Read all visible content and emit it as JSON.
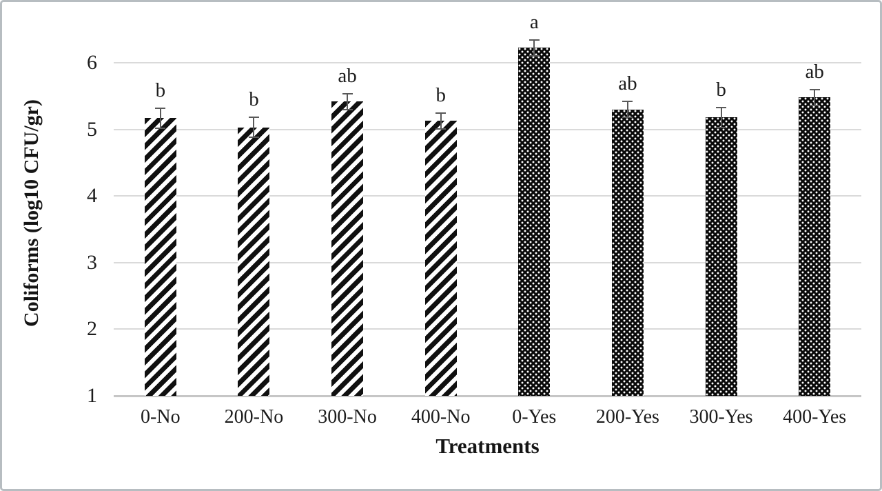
{
  "figure": {
    "background": "#ffffff",
    "border_color": "#b7bdc1"
  },
  "chart_data": {
    "type": "bar",
    "title": "",
    "xlabel": "Treatments",
    "ylabel": "Coliforms (log10 CFU/gr)",
    "categories": [
      "0-No",
      "200-No",
      "300-No",
      "400-No",
      "0-Yes",
      "200-Yes",
      "300-Yes",
      "400-Yes"
    ],
    "values": [
      5.17,
      5.03,
      5.42,
      5.13,
      6.23,
      5.3,
      5.18,
      5.48
    ],
    "error_bars": [
      0.16,
      0.16,
      0.13,
      0.13,
      0.13,
      0.13,
      0.16,
      0.13
    ],
    "significance_letters": [
      "b",
      "b",
      "ab",
      "b",
      "a",
      "ab",
      "b",
      "ab"
    ],
    "bar_patterns": [
      "diagonal-stripes",
      "diagonal-stripes",
      "diagonal-stripes",
      "diagonal-stripes",
      "white-dots-on-black",
      "white-dots-on-black",
      "white-dots-on-black",
      "white-dots-on-black"
    ],
    "ylim": [
      1,
      6.5
    ],
    "yticks": [
      1,
      2,
      3,
      4,
      5,
      6
    ],
    "grid": true,
    "legend_position": "none",
    "style": {
      "bar_color": "#0a0a0a",
      "error_bar_color": "#595959",
      "gridline_color": "#dadada",
      "axis_line_color": "#c6c6c6",
      "text_color": "#1c1c1c"
    }
  }
}
